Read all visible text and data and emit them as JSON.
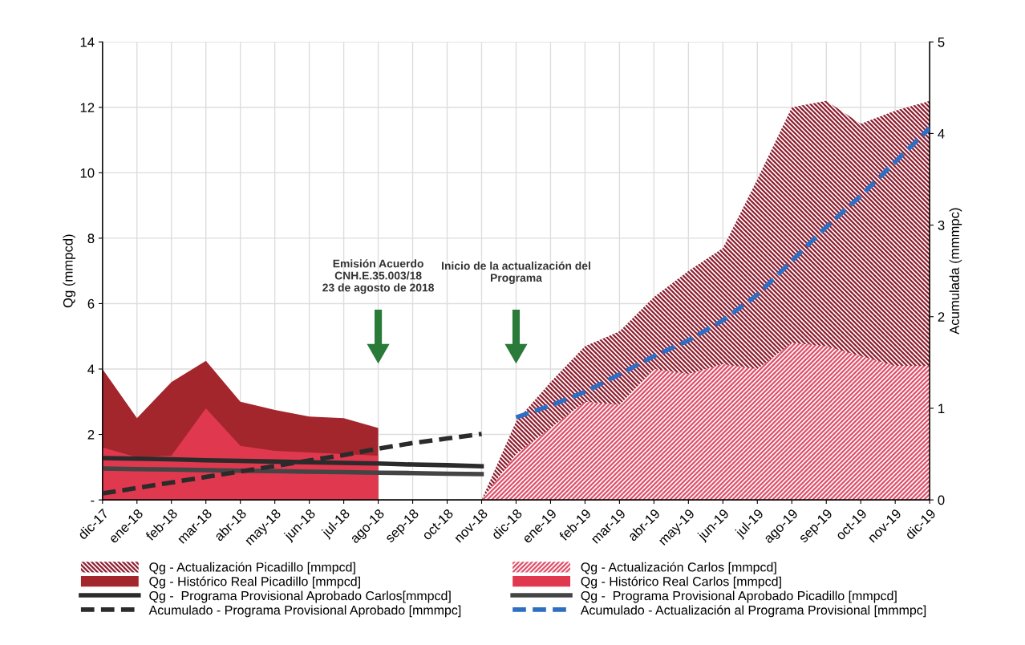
{
  "chart_data": {
    "type": "area",
    "ylabel": "Qg (mmpcd)",
    "y2label": "Acumulada (mmmpc)",
    "categories": [
      "dic-17",
      "ene-18",
      "feb-18",
      "mar-18",
      "abr-18",
      "may-18",
      "jun-18",
      "jul-18",
      "ago-18",
      "sep-18",
      "oct-18",
      "nov-18",
      "dic-18",
      "ene-19",
      "feb-19",
      "mar-19",
      "abr-19",
      "may-19",
      "jun-19",
      "jul-19",
      "ago-19",
      "sep-19",
      "oct-19",
      "nov-19",
      "dic-19"
    ],
    "series": [
      {
        "name": "Qg - Actualización Picadillo [mmpcd]",
        "color": "#8e1f30",
        "values": [
          null,
          null,
          null,
          null,
          null,
          null,
          null,
          null,
          null,
          null,
          null,
          0,
          2.4,
          3.6,
          4.7,
          5.15,
          6.2,
          7.0,
          7.7,
          9.8,
          12.0,
          12.2,
          11.5,
          11.9,
          12.2
        ]
      },
      {
        "name": "Qg - Actualización Carlos [mmpcd]",
        "color": "#e0506a",
        "values": [
          null,
          null,
          null,
          null,
          null,
          null,
          null,
          null,
          null,
          null,
          null,
          0,
          1.4,
          2.2,
          3.0,
          2.9,
          4.0,
          3.85,
          4.15,
          4.0,
          4.8,
          4.7,
          4.4,
          4.1,
          4.1
        ]
      },
      {
        "name": "Qg - Histórico Real Picadillo [mmpcd]",
        "color": "#a3262d",
        "values": [
          4.0,
          2.5,
          3.6,
          4.25,
          3.0,
          2.75,
          2.55,
          2.5,
          2.2,
          null,
          null,
          null,
          null,
          null,
          null,
          null,
          null,
          null,
          null,
          null,
          null,
          null,
          null,
          null,
          null
        ]
      },
      {
        "name": "Qg - Histórico Real Carlos [mmpcd]",
        "color": "#e0384f",
        "values": [
          1.6,
          1.3,
          1.35,
          2.8,
          1.65,
          1.5,
          1.45,
          1.4,
          1.35,
          null,
          null,
          null,
          null,
          null,
          null,
          null,
          null,
          null,
          null,
          null,
          null,
          null,
          null,
          null,
          null
        ]
      },
      {
        "name": "Qg -  Programa Provisional Aprobado Carlos[mmpcd]",
        "type": "line",
        "color": "#2b2b2b",
        "line_style": "solid",
        "values": [
          1.28,
          1.26,
          1.24,
          1.21,
          1.19,
          1.17,
          1.15,
          1.13,
          1.11,
          1.08,
          1.06,
          1.03,
          null,
          null,
          null,
          null,
          null,
          null,
          null,
          null,
          null,
          null,
          null,
          null,
          null
        ]
      },
      {
        "name": "Qg -  Programa Provisional Aprobado Picadillo [mmpcd]",
        "type": "line",
        "color": "#444444",
        "line_style": "solid",
        "values": [
          0.96,
          0.94,
          0.93,
          0.91,
          0.89,
          0.88,
          0.86,
          0.85,
          0.83,
          0.82,
          0.8,
          0.79,
          null,
          null,
          null,
          null,
          null,
          null,
          null,
          null,
          null,
          null,
          null,
          null,
          null
        ]
      },
      {
        "name": "Acumulado - Programa Provisional Aprobado [mmmpc]",
        "type": "line",
        "axis": "y2",
        "color": "#2b2b2b",
        "line_style": "dashed",
        "values": [
          0.07,
          0.13,
          0.19,
          0.25,
          0.31,
          0.37,
          0.43,
          0.49,
          0.56,
          0.62,
          0.67,
          0.72,
          null,
          null,
          null,
          null,
          null,
          null,
          null,
          null,
          null,
          null,
          null,
          null,
          null
        ]
      },
      {
        "name": "Acumulado - Actualización al Programa Provisional [mmmpc]",
        "type": "line",
        "axis": "y2",
        "color": "#2e6fc4",
        "line_style": "dashed",
        "values": [
          null,
          null,
          null,
          null,
          null,
          null,
          null,
          null,
          null,
          null,
          null,
          null,
          0.9,
          1.03,
          1.18,
          1.37,
          1.57,
          1.74,
          1.96,
          2.24,
          2.61,
          2.98,
          3.32,
          3.69,
          4.06
        ]
      }
    ],
    "ylim": [
      0,
      14
    ],
    "yticks": [
      {
        "value": 0,
        "label": "-"
      },
      2,
      4,
      6,
      8,
      10,
      12,
      14
    ],
    "y2lim": [
      0,
      5
    ],
    "y2ticks": [
      0,
      1,
      2,
      3,
      4,
      5
    ],
    "grid": true,
    "legend": "bottom",
    "annotations": [
      "Emisión Acuerdo\nCNH.E.35.003/18\n23 de agosto de 2018",
      "Inicio de la actualización del\nPrograma"
    ]
  }
}
